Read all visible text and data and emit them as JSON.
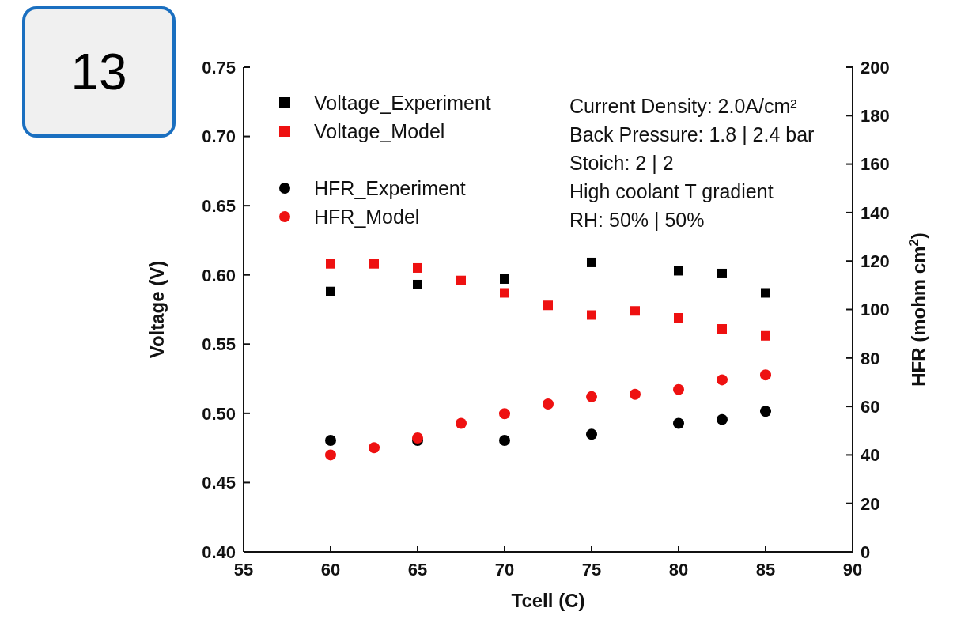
{
  "chart_data": {
    "type": "scatter",
    "xlabel": "Tcell (C)",
    "ylabel": "Voltage (V)",
    "y2label": "HFR (mohm cm$^{2}$)",
    "annotations": [
      "13",
      "Current Density: 2.0A/cm²",
      "Back Pressure: 1.8 | 2.4 bar",
      "Stoich: 2 | 2",
      "High coolant T gradient",
      "RH: 50% | 50%"
    ],
    "series": [
      {
        "name": "Voltage_Experiment",
        "color": "#000000",
        "marker": "square",
        "x": [
          60,
          65,
          70,
          75,
          80,
          82.5,
          85
        ],
        "values": [
          0.588,
          0.593,
          0.597,
          0.609,
          0.603,
          0.601,
          0.587
        ]
      },
      {
        "name": "Voltage_Model",
        "color": "#ee1111",
        "marker": "square",
        "x": [
          60,
          62.5,
          65,
          67.5,
          70,
          72.5,
          75,
          77.5,
          80,
          82.5,
          85
        ],
        "values": [
          0.608,
          0.608,
          0.605,
          0.596,
          0.587,
          0.578,
          0.571,
          0.574,
          0.569,
          0.561,
          0.556
        ]
      },
      {
        "name": "HFR_Experiment",
        "color": "#000000",
        "marker": "circle",
        "axis": "y2",
        "x": [
          60,
          65,
          70,
          75,
          80,
          82.5,
          85
        ],
        "values": [
          46,
          46,
          46,
          48.5,
          53,
          54.6,
          58
        ]
      },
      {
        "name": "HFR_Model",
        "color": "#ee1111",
        "marker": "circle",
        "axis": "y2",
        "x": [
          60,
          62.5,
          65,
          67.5,
          70,
          72.5,
          75,
          77.5,
          80,
          82.5,
          85
        ],
        "values": [
          40,
          43,
          47,
          53,
          57,
          61,
          64,
          65,
          67,
          71,
          73
        ]
      }
    ],
    "xlim": [
      55,
      90
    ],
    "xticks": [
      55,
      60,
      65,
      70,
      75,
      80,
      85,
      90
    ],
    "ylim": [
      0.4,
      0.75
    ],
    "yticks": [
      {
        "value": 0.4,
        "label": "0.40"
      },
      {
        "value": 0.45,
        "label": "0.45"
      },
      {
        "value": 0.5,
        "label": "0.50"
      },
      {
        "value": 0.55,
        "label": "0.55"
      },
      {
        "value": 0.6,
        "label": "0.60"
      },
      {
        "value": 0.65,
        "label": "0.65"
      },
      {
        "value": 0.7,
        "label": "0.70"
      },
      {
        "value": 0.75,
        "label": "0.75"
      }
    ],
    "y2lim": [
      0,
      200
    ],
    "y2ticks": [
      0,
      20,
      40,
      60,
      80,
      100,
      120,
      140,
      160,
      180,
      200
    ],
    "grid": false,
    "legend": "top left"
  }
}
